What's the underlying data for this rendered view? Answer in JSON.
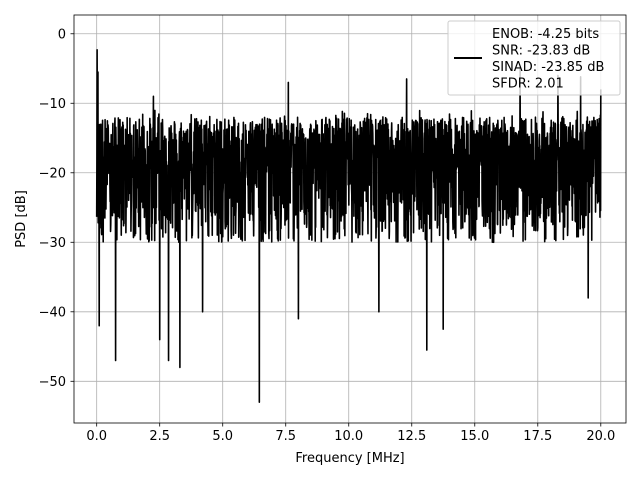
{
  "chart_data": {
    "type": "line",
    "title": "",
    "xlabel": "Frequency [MHz]",
    "ylabel": "PSD [dB]",
    "xlim": [
      -0.9,
      21.0
    ],
    "ylim": [
      -56,
      2.7
    ],
    "x_ticks": [
      0.0,
      2.5,
      5.0,
      7.5,
      10.0,
      12.5,
      15.0,
      17.5,
      20.0
    ],
    "x_tick_labels": [
      "0.0",
      "2.5",
      "5.0",
      "7.5",
      "10.0",
      "12.5",
      "15.0",
      "17.5",
      "20.0"
    ],
    "y_ticks": [
      0,
      -10,
      -20,
      -30,
      -40,
      -50
    ],
    "y_tick_labels": [
      "0",
      "−10",
      "−20",
      "−30",
      "−40",
      "−50"
    ],
    "grid": true,
    "legend": {
      "placement": "top-right",
      "entries": [
        "ENOB: -4.25 bits",
        "SNR: -23.83 dB",
        "SINAD: -23.85 dB",
        "SFDR: 2.01"
      ]
    },
    "series": [
      {
        "color": "#000000",
        "x_start": 0.0,
        "x_end": 20.0,
        "peak_x": 0.02,
        "peak_y": -2.3,
        "typical_range": [
          -30,
          -8
        ],
        "lower_envelope_approx": [
          [
            0.1,
            -42
          ],
          [
            0.75,
            -47
          ],
          [
            2.5,
            -44
          ],
          [
            2.85,
            -47
          ],
          [
            3.3,
            -48
          ],
          [
            4.2,
            -40
          ],
          [
            6.45,
            -53
          ],
          [
            8,
            -41
          ],
          [
            11.2,
            -40
          ],
          [
            13.1,
            -45.5
          ],
          [
            13.75,
            -42.5
          ],
          [
            15.75,
            -30
          ],
          [
            19.5,
            -38
          ]
        ],
        "upper_envelope_approx": [
          [
            0.05,
            -5.5
          ],
          [
            2.25,
            -9
          ],
          [
            7.6,
            -7
          ],
          [
            12.3,
            -6.5
          ],
          [
            16.8,
            -5
          ],
          [
            18.3,
            -6
          ],
          [
            19.2,
            -6.2
          ],
          [
            20.0,
            -8
          ]
        ]
      }
    ]
  }
}
